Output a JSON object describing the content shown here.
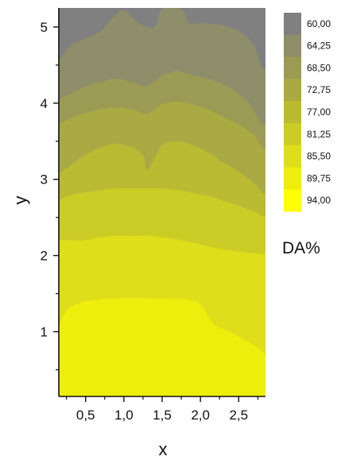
{
  "chart_data": {
    "type": "contour",
    "xlabel": "x",
    "ylabel": "y",
    "xlim": [
      0.15,
      2.85
    ],
    "ylim": [
      0.15,
      5.25
    ],
    "x_ticks": [
      0.5,
      1.0,
      1.5,
      2.0,
      2.5
    ],
    "x_tick_labels": [
      "0,5",
      "1,0",
      "1,5",
      "2,0",
      "2,5"
    ],
    "y_ticks": [
      1,
      2,
      3,
      4,
      5
    ],
    "y_tick_labels": [
      "1",
      "2",
      "3",
      "4",
      "5"
    ],
    "legend_title": "DA%",
    "legend_position": "right",
    "levels": [
      {
        "label": "60,00",
        "value": 60.0,
        "color": "#808080"
      },
      {
        "label": "64,25",
        "value": 64.25,
        "color": "#8e8e6a"
      },
      {
        "label": "68,50",
        "value": 68.5,
        "color": "#9b9b55"
      },
      {
        "label": "72,75",
        "value": 72.75,
        "color": "#aaaa44"
      },
      {
        "label": "77,00",
        "value": 77.0,
        "color": "#baba33"
      },
      {
        "label": "81,25",
        "value": 81.25,
        "color": "#cccc26"
      },
      {
        "label": "85,50",
        "value": 85.5,
        "color": "#dede1a"
      },
      {
        "label": "89,75",
        "value": 89.75,
        "color": "#eeee0d"
      },
      {
        "label": "94,00",
        "value": 94.0,
        "color": "#ffff00"
      }
    ],
    "contours": [
      {
        "level": 64.25,
        "points": [
          [
            0.15,
            4.55
          ],
          [
            0.3,
            4.75
          ],
          [
            0.5,
            4.85
          ],
          [
            0.7,
            4.95
          ],
          [
            0.85,
            5.12
          ],
          [
            1.0,
            5.22
          ],
          [
            1.2,
            5.05
          ],
          [
            1.4,
            5.0
          ],
          [
            1.5,
            5.23
          ],
          [
            1.75,
            5.23
          ],
          [
            1.85,
            5.05
          ],
          [
            2.0,
            5.05
          ],
          [
            2.25,
            5.03
          ],
          [
            2.5,
            4.95
          ],
          [
            2.7,
            4.75
          ],
          [
            2.8,
            4.45
          ]
        ]
      },
      {
        "level": 68.5,
        "points": [
          [
            0.15,
            4.05
          ],
          [
            0.3,
            4.12
          ],
          [
            0.5,
            4.22
          ],
          [
            0.7,
            4.28
          ],
          [
            0.9,
            4.32
          ],
          [
            1.1,
            4.28
          ],
          [
            1.3,
            4.23
          ],
          [
            1.5,
            4.36
          ],
          [
            1.7,
            4.42
          ],
          [
            1.9,
            4.36
          ],
          [
            2.1,
            4.32
          ],
          [
            2.3,
            4.25
          ],
          [
            2.5,
            4.12
          ],
          [
            2.65,
            3.98
          ],
          [
            2.8,
            3.72
          ]
        ]
      },
      {
        "level": 72.75,
        "points": [
          [
            0.15,
            3.72
          ],
          [
            0.3,
            3.8
          ],
          [
            0.5,
            3.87
          ],
          [
            0.7,
            3.92
          ],
          [
            0.9,
            3.94
          ],
          [
            1.1,
            3.92
          ],
          [
            1.3,
            3.86
          ],
          [
            1.5,
            3.98
          ],
          [
            1.7,
            4.02
          ],
          [
            1.9,
            3.98
          ],
          [
            2.1,
            3.92
          ],
          [
            2.3,
            3.82
          ],
          [
            2.5,
            3.72
          ],
          [
            2.7,
            3.58
          ],
          [
            2.8,
            3.42
          ]
        ]
      },
      {
        "level": 77.0,
        "points": [
          [
            0.15,
            3.08
          ],
          [
            0.3,
            3.18
          ],
          [
            0.5,
            3.32
          ],
          [
            0.7,
            3.42
          ],
          [
            0.9,
            3.47
          ],
          [
            1.1,
            3.42
          ],
          [
            1.25,
            3.32
          ],
          [
            1.3,
            3.12
          ],
          [
            1.4,
            3.28
          ],
          [
            1.5,
            3.45
          ],
          [
            1.7,
            3.5
          ],
          [
            1.9,
            3.45
          ],
          [
            2.1,
            3.35
          ],
          [
            2.3,
            3.22
          ],
          [
            2.5,
            3.1
          ],
          [
            2.7,
            2.95
          ],
          [
            2.8,
            2.82
          ]
        ]
      },
      {
        "level": 81.25,
        "points": [
          [
            0.15,
            2.72
          ],
          [
            0.3,
            2.79
          ],
          [
            0.5,
            2.83
          ],
          [
            0.7,
            2.86
          ],
          [
            0.9,
            2.88
          ],
          [
            1.1,
            2.88
          ],
          [
            1.3,
            2.88
          ],
          [
            1.5,
            2.88
          ],
          [
            1.7,
            2.86
          ],
          [
            1.9,
            2.82
          ],
          [
            2.1,
            2.78
          ],
          [
            2.3,
            2.72
          ],
          [
            2.5,
            2.65
          ],
          [
            2.7,
            2.58
          ],
          [
            2.8,
            2.52
          ]
        ]
      },
      {
        "level": 85.5,
        "points": [
          [
            0.15,
            2.2
          ],
          [
            0.3,
            2.2
          ],
          [
            0.5,
            2.2
          ],
          [
            0.7,
            2.24
          ],
          [
            0.9,
            2.26
          ],
          [
            1.1,
            2.26
          ],
          [
            1.3,
            2.26
          ],
          [
            1.5,
            2.24
          ],
          [
            1.7,
            2.21
          ],
          [
            1.9,
            2.17
          ],
          [
            2.1,
            2.12
          ],
          [
            2.3,
            2.08
          ],
          [
            2.5,
            2.05
          ],
          [
            2.7,
            2.03
          ],
          [
            2.8,
            2.02
          ]
        ]
      },
      {
        "level": 89.75,
        "points": [
          [
            0.15,
            1.05
          ],
          [
            0.2,
            1.2
          ],
          [
            0.3,
            1.32
          ],
          [
            0.5,
            1.4
          ],
          [
            0.75,
            1.43
          ],
          [
            1.0,
            1.44
          ],
          [
            1.3,
            1.44
          ],
          [
            1.6,
            1.43
          ],
          [
            1.85,
            1.42
          ],
          [
            2.0,
            1.36
          ],
          [
            2.1,
            1.2
          ],
          [
            2.2,
            1.08
          ],
          [
            2.4,
            0.99
          ],
          [
            2.65,
            0.85
          ],
          [
            2.8,
            0.75
          ],
          [
            2.85,
            0.68
          ]
        ]
      },
      {
        "level": 89.75,
        "closed": true,
        "points": [
          [
            2.52,
            0.15
          ],
          [
            2.58,
            0.32
          ],
          [
            2.66,
            0.5
          ],
          [
            2.73,
            0.62
          ],
          [
            2.8,
            0.67
          ],
          [
            2.85,
            0.62
          ],
          [
            2.85,
            0.42
          ],
          [
            2.78,
            0.38
          ],
          [
            2.72,
            0.3
          ],
          [
            2.64,
            0.22
          ],
          [
            2.58,
            0.15
          ]
        ]
      }
    ]
  }
}
